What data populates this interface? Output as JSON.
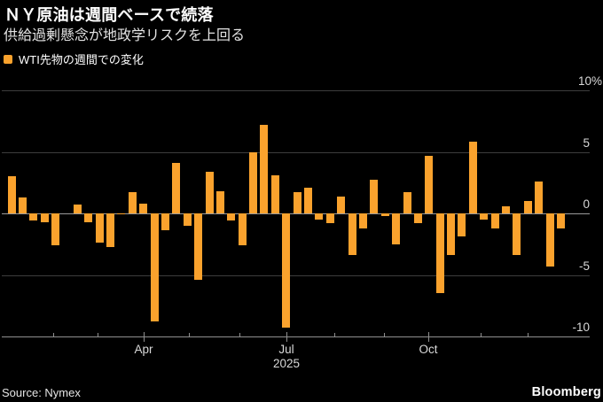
{
  "header": {
    "title": "ＮＹ原油は週間ベースで続落",
    "subtitle": "供給過剰懸念が地政学リスクを上回る"
  },
  "legend": {
    "label": "WTI先物の週間での変化"
  },
  "footer": {
    "source": "Source: Nymex",
    "brand": "Bloomberg"
  },
  "colors": {
    "background": "#000000",
    "bar": "#FAA22D",
    "grid": "#3D3D3D",
    "zero_line": "#9A9A9A",
    "axis": "#8F8F8F",
    "text": "#FFFFFF",
    "muted_text": "#D9D9D9"
  },
  "chart_data": {
    "type": "bar",
    "title": "ＮＹ原油は週間ベースで続落",
    "subtitle": "供給過剰懸念が地政学リスクを上回る",
    "unit": "%",
    "x_unit": "week",
    "x_range": "Jan 2025 – Dec 2025",
    "grid": true,
    "legend_position": "top-left",
    "ylim": [
      -10,
      10
    ],
    "y_ticks": [
      10,
      5,
      0,
      -5,
      -10
    ],
    "y_tick_labels": [
      "10%",
      "5",
      "0",
      "-5",
      "-10"
    ],
    "series": [
      {
        "name": "WTI先物の週間での変化",
        "values": [
          3.0,
          1.3,
          -0.6,
          -0.7,
          -2.6,
          0.0,
          0.7,
          -0.7,
          -2.4,
          -2.7,
          -0.1,
          1.7,
          0.8,
          -8.8,
          -1.4,
          4.1,
          -1.0,
          -5.4,
          3.4,
          1.8,
          -0.6,
          -2.6,
          5.0,
          7.2,
          3.1,
          -9.3,
          1.7,
          2.1,
          -0.5,
          -0.8,
          1.4,
          -3.4,
          -1.2,
          2.7,
          -0.2,
          -2.5,
          1.7,
          -0.8,
          4.7,
          -6.5,
          -3.4,
          -1.9,
          5.8,
          -0.5,
          -1.2,
          0.6,
          -3.4,
          1.0,
          2.6,
          -4.3,
          -1.2
        ]
      }
    ],
    "x_ticks": [
      {
        "x": 60,
        "label": ""
      },
      {
        "x": 110,
        "label": ""
      },
      {
        "x": 162,
        "label": "Apr"
      },
      {
        "x": 213,
        "label": ""
      },
      {
        "x": 270,
        "label": ""
      },
      {
        "x": 323,
        "label": "Jul"
      },
      {
        "x": 377,
        "label": ""
      },
      {
        "x": 433,
        "label": ""
      },
      {
        "x": 483,
        "label": "Oct"
      },
      {
        "x": 542,
        "label": ""
      },
      {
        "x": 595,
        "label": ""
      }
    ],
    "year_label": "2025",
    "year_label_x": 323
  }
}
